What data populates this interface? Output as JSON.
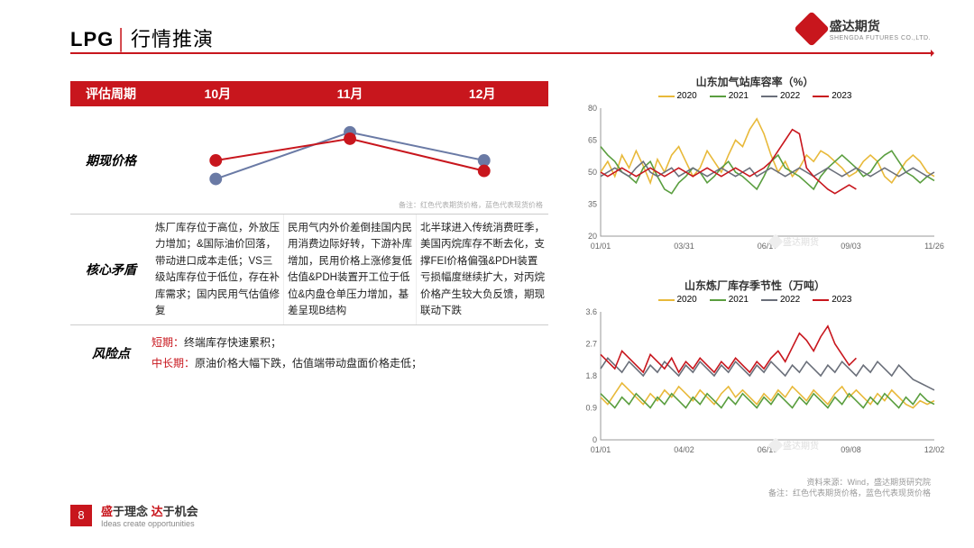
{
  "header": {
    "title_prefix": "LPG",
    "title_rest": "行情推演"
  },
  "logo": {
    "cn": "盛达期货",
    "en": "SHENGDA FUTURES CO.,LTD."
  },
  "eval": {
    "label": "评估周期",
    "cols": [
      "10月",
      "11月",
      "12月"
    ]
  },
  "price_section": {
    "label": "期现价格",
    "note": "备注：红色代表期货价格，蓝色代表现货价格",
    "series": {
      "blue": {
        "color": "#6a7aa5",
        "points": [
          [
            0,
            32
          ],
          [
            1,
            90
          ],
          [
            2,
            55
          ]
        ]
      },
      "red": {
        "color": "#c8161d",
        "points": [
          [
            0,
            55
          ],
          [
            1,
            82
          ],
          [
            2,
            42
          ]
        ]
      }
    }
  },
  "core": {
    "label": "核心矛盾",
    "cells": [
      "炼厂库存位于高位，外放压力增加；&国际油价回落，带动进口成本走低；VS三级站库存位于低位，存在补库需求；国内民用气估值修复",
      "民用气内外价差倒挂国内民用消费边际好转，下游补库增加，民用价格上涨修复低估值&PDH装置开工位于低位&内盘仓单压力增加，基差呈现B结构",
      "北半球进入传统消费旺季，美国丙烷库存不断去化，支撑FEI价格偏强&PDH装置亏损幅度继续扩大，对丙烷价格产生较大负反馈，期现联动下跌"
    ]
  },
  "risk": {
    "label": "风险点",
    "short_tag": "短期：",
    "short_txt": "终端库存快速累积；",
    "long_tag": "中长期：",
    "long_txt": "原油价格大幅下跌，估值端带动盘面价格走低；"
  },
  "chart_common": {
    "legend": [
      {
        "label": "2020",
        "color": "#e8b93a"
      },
      {
        "label": "2021",
        "color": "#5a9e3f"
      },
      {
        "label": "2022",
        "color": "#6a6f7a"
      },
      {
        "label": "2023",
        "color": "#c8161d"
      }
    ]
  },
  "chart1": {
    "title": "山东加气站库容率（%）",
    "ylim": [
      20,
      80
    ],
    "yticks": [
      20,
      35,
      50,
      65,
      80
    ],
    "xlabels": [
      "01/01",
      "03/31",
      "06/17",
      "09/03",
      "11/26"
    ],
    "series": {
      "2020": [
        50,
        55,
        48,
        58,
        52,
        60,
        53,
        45,
        56,
        50,
        58,
        62,
        55,
        48,
        52,
        60,
        55,
        50,
        58,
        65,
        62,
        70,
        75,
        68,
        58,
        50,
        55,
        48,
        52,
        58,
        55,
        60,
        58,
        55,
        52,
        48,
        50,
        55,
        58,
        55,
        48,
        45,
        50,
        55,
        58,
        55,
        50,
        48
      ],
      "2021": [
        62,
        58,
        55,
        50,
        48,
        45,
        52,
        55,
        48,
        42,
        40,
        45,
        48,
        52,
        50,
        45,
        48,
        52,
        55,
        50,
        48,
        45,
        42,
        48,
        55,
        58,
        52,
        50,
        48,
        45,
        42,
        48,
        52,
        55,
        58,
        55,
        52,
        48,
        50,
        55,
        58,
        60,
        55,
        50,
        48,
        45,
        48,
        46
      ],
      "2022": [
        48,
        50,
        52,
        50,
        48,
        52,
        55,
        50,
        48,
        50,
        52,
        48,
        50,
        52,
        50,
        48,
        50,
        52,
        50,
        48,
        50,
        52,
        48,
        50,
        52,
        50,
        48,
        50,
        52,
        50,
        48,
        50,
        52,
        50,
        48,
        50,
        52,
        50,
        48,
        50,
        52,
        50,
        48,
        50,
        52,
        50,
        48,
        50
      ],
      "2023": [
        50,
        48,
        50,
        52,
        50,
        48,
        50,
        52,
        50,
        48,
        50,
        52,
        50,
        48,
        50,
        52,
        50,
        48,
        50,
        52,
        50,
        48,
        50,
        52,
        55,
        60,
        65,
        70,
        68,
        52,
        48,
        45,
        42,
        40,
        42,
        44,
        42
      ]
    }
  },
  "chart2": {
    "title": "山东炼厂库存季节性（万吨）",
    "ylim": [
      0.0,
      3.6
    ],
    "yticks": [
      0.0,
      0.9,
      1.8,
      2.7,
      3.6
    ],
    "xlabels": [
      "01/01",
      "04/02",
      "06/19",
      "09/08",
      "12/02"
    ],
    "series": {
      "2020": [
        1.2,
        1.0,
        1.3,
        1.6,
        1.4,
        1.2,
        1.0,
        1.3,
        1.1,
        1.4,
        1.2,
        1.5,
        1.3,
        1.1,
        1.4,
        1.2,
        1.0,
        1.3,
        1.5,
        1.2,
        1.4,
        1.2,
        1.0,
        1.3,
        1.1,
        1.4,
        1.2,
        1.5,
        1.3,
        1.1,
        1.4,
        1.2,
        1.0,
        1.3,
        1.5,
        1.2,
        1.4,
        1.2,
        1.0,
        1.3,
        1.1,
        1.4,
        1.2,
        1.0,
        0.9,
        1.1,
        1.0,
        1.1
      ],
      "2021": [
        1.3,
        1.1,
        0.9,
        1.2,
        1.0,
        1.3,
        1.1,
        0.9,
        1.2,
        1.0,
        1.3,
        1.1,
        0.9,
        1.2,
        1.0,
        1.3,
        1.1,
        0.9,
        1.2,
        1.0,
        1.3,
        1.1,
        0.9,
        1.2,
        1.0,
        1.3,
        1.1,
        0.9,
        1.2,
        1.0,
        1.3,
        1.1,
        0.9,
        1.2,
        1.0,
        1.3,
        1.1,
        0.9,
        1.2,
        1.0,
        1.3,
        1.1,
        0.9,
        1.2,
        1.0,
        1.3,
        1.1,
        1.0
      ],
      "2022": [
        2.0,
        2.3,
        2.1,
        1.9,
        2.2,
        2.0,
        1.8,
        2.1,
        1.9,
        2.2,
        2.0,
        1.8,
        2.1,
        1.9,
        2.2,
        2.0,
        1.8,
        2.1,
        1.9,
        2.2,
        2.0,
        1.8,
        2.1,
        1.9,
        2.2,
        2.0,
        1.8,
        2.1,
        1.9,
        2.2,
        2.0,
        1.8,
        2.1,
        1.9,
        2.2,
        2.0,
        1.8,
        2.1,
        1.9,
        2.2,
        2.0,
        1.8,
        2.1,
        1.9,
        1.7,
        1.6,
        1.5,
        1.4
      ],
      "2023": [
        2.4,
        2.2,
        2.0,
        2.5,
        2.3,
        2.1,
        1.9,
        2.4,
        2.2,
        2.0,
        2.3,
        1.9,
        2.2,
        2.0,
        2.3,
        2.1,
        1.9,
        2.2,
        2.0,
        2.3,
        2.1,
        1.9,
        2.2,
        2.0,
        2.3,
        2.5,
        2.2,
        2.6,
        3.0,
        2.8,
        2.5,
        2.9,
        3.2,
        2.7,
        2.4,
        2.1,
        2.3
      ]
    }
  },
  "source": "资料来源：Wind，盛达期货研究院",
  "source2": "备注：红色代表期货价格，蓝色代表现货价格",
  "footer": {
    "page": "8",
    "cn_a": "盛",
    "cn_b": "于理念 ",
    "cn_c": "达",
    "cn_d": "于机会",
    "en": "Ideas create opportunities"
  },
  "watermark": "盛达期货"
}
